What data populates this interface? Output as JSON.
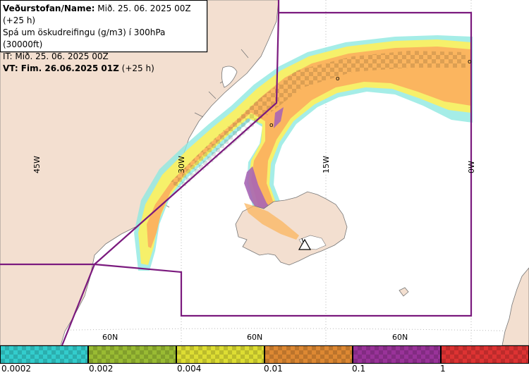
{
  "header": {
    "line1_label": "Veðurstofan/Name:",
    "line1_value": "Mið. 25. 06. 2025 00Z (+25 h)",
    "line2": "Spá um öskudreifingu (g/m3) í 300hPa (30000ft)",
    "line3": "IT: Mið. 25. 06. 2025 00Z",
    "line4_label": "VT: Fim. 26.06.2025 01Z",
    "line4_value": "(+25 h)"
  },
  "map": {
    "longitude_labels": [
      "45W",
      "30W",
      "15W",
      "0W"
    ],
    "latitude_labels": [
      "60N",
      "60N",
      "60N"
    ],
    "markers": [
      "o",
      "o",
      "o"
    ],
    "colors": {
      "sea": "#ffffff",
      "land": "#f3dfd0",
      "coast": "#777777",
      "grid": "#b8b8b8",
      "boundary": "#7b1a7e",
      "ash_orange": "#fbb55f",
      "ash_yellow": "#f6f06a",
      "ash_cyan": "#8fe9e1",
      "ash_purple": "#a865b5"
    },
    "volcano_icon": "volcano-triangle-icon"
  },
  "legend": {
    "colors": [
      "#33cccc",
      "#99bb33",
      "#dddd33",
      "#dd8833",
      "#993399",
      "#dd3333"
    ],
    "labels": [
      "0.0002",
      "0.002",
      "0.004",
      "0.01",
      "0.1",
      "1"
    ]
  }
}
